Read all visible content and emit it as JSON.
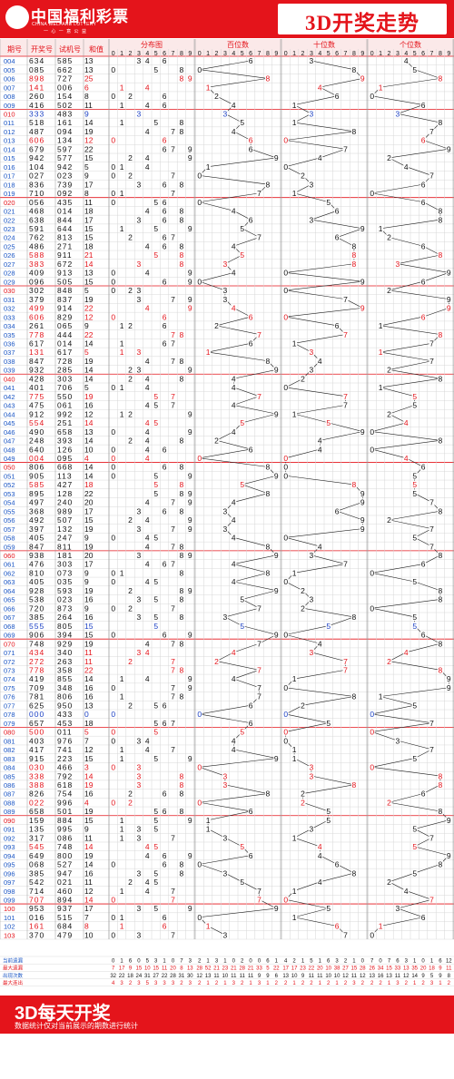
{
  "header": {
    "logo_text": "中国福利彩票",
    "logo_en": "CHINA WELFARE LOTTERY",
    "logo_slogan": "一 心 一 意 公 益",
    "title": "3D开奖走势"
  },
  "footer": {
    "title": "3D每天开奖",
    "note": "数据统计仅对当前展示的期数进行统计"
  },
  "columns": {
    "period": "期号",
    "draw": "开奖号",
    "trial": "试机号",
    "sum": "和值",
    "dist": "分布图",
    "hundreds": "百位数",
    "tens": "十位数",
    "units": "个位数"
  },
  "digits": [
    "0",
    "1",
    "2",
    "3",
    "4",
    "5",
    "6",
    "7",
    "8",
    "9"
  ],
  "stat_labels": [
    "当前遗漏",
    "最大遗漏",
    "出现次数",
    "最大连出"
  ],
  "colors": {
    "red": "#e4141b",
    "blue": "#1a3fc4",
    "black": "#111111",
    "header_bg": "#e4141b"
  },
  "chart_data": {
    "type": "table",
    "rows": [
      [
        "004",
        "634",
        "585",
        "13"
      ],
      [
        "005",
        "085",
        "662",
        "13"
      ],
      [
        "006",
        "898",
        "727",
        "25"
      ],
      [
        "007",
        "141",
        "006",
        "6"
      ],
      [
        "008",
        "260",
        "154",
        "8"
      ],
      [
        "009",
        "416",
        "502",
        "11"
      ],
      [
        "010",
        "333",
        "483",
        "9"
      ],
      [
        "011",
        "518",
        "161",
        "14"
      ],
      [
        "012",
        "487",
        "094",
        "19"
      ],
      [
        "013",
        "606",
        "134",
        "12"
      ],
      [
        "014",
        "679",
        "597",
        "22"
      ],
      [
        "015",
        "942",
        "577",
        "15"
      ],
      [
        "016",
        "104",
        "942",
        "5"
      ],
      [
        "017",
        "027",
        "023",
        "9"
      ],
      [
        "018",
        "836",
        "739",
        "17"
      ],
      [
        "019",
        "710",
        "092",
        "8"
      ],
      [
        "020",
        "056",
        "435",
        "11"
      ],
      [
        "021",
        "468",
        "014",
        "18"
      ],
      [
        "022",
        "638",
        "844",
        "17"
      ],
      [
        "023",
        "591",
        "644",
        "15"
      ],
      [
        "024",
        "762",
        "813",
        "15"
      ],
      [
        "025",
        "486",
        "271",
        "18"
      ],
      [
        "026",
        "588",
        "911",
        "21"
      ],
      [
        "027",
        "383",
        "672",
        "14"
      ],
      [
        "028",
        "409",
        "913",
        "13"
      ],
      [
        "029",
        "096",
        "505",
        "15"
      ],
      [
        "030",
        "302",
        "848",
        "5"
      ],
      [
        "031",
        "379",
        "837",
        "19"
      ],
      [
        "032",
        "499",
        "914",
        "22"
      ],
      [
        "033",
        "606",
        "829",
        "12"
      ],
      [
        "034",
        "261",
        "065",
        "9"
      ],
      [
        "035",
        "778",
        "444",
        "22"
      ],
      [
        "036",
        "617",
        "014",
        "14"
      ],
      [
        "037",
        "131",
        "617",
        "5"
      ],
      [
        "038",
        "847",
        "728",
        "19"
      ],
      [
        "039",
        "932",
        "285",
        "14"
      ],
      [
        "040",
        "428",
        "303",
        "14"
      ],
      [
        "041",
        "401",
        "706",
        "5"
      ],
      [
        "042",
        "775",
        "550",
        "19"
      ],
      [
        "043",
        "475",
        "061",
        "16"
      ],
      [
        "044",
        "912",
        "992",
        "12"
      ],
      [
        "045",
        "554",
        "251",
        "14"
      ],
      [
        "046",
        "490",
        "658",
        "13"
      ],
      [
        "047",
        "248",
        "393",
        "14"
      ],
      [
        "048",
        "640",
        "126",
        "10"
      ],
      [
        "049",
        "004",
        "095",
        "4"
      ],
      [
        "050",
        "806",
        "668",
        "14"
      ],
      [
        "051",
        "905",
        "113",
        "14"
      ],
      [
        "052",
        "585",
        "427",
        "18"
      ],
      [
        "053",
        "895",
        "128",
        "22"
      ],
      [
        "054",
        "497",
        "240",
        "20"
      ],
      [
        "055",
        "368",
        "989",
        "17"
      ],
      [
        "056",
        "492",
        "507",
        "15"
      ],
      [
        "057",
        "397",
        "132",
        "19"
      ],
      [
        "058",
        "405",
        "247",
        "9"
      ],
      [
        "059",
        "847",
        "811",
        "19"
      ],
      [
        "060",
        "938",
        "181",
        "20"
      ],
      [
        "061",
        "476",
        "303",
        "17"
      ],
      [
        "062",
        "810",
        "073",
        "9"
      ],
      [
        "063",
        "405",
        "035",
        "9"
      ],
      [
        "064",
        "928",
        "593",
        "19"
      ],
      [
        "065",
        "538",
        "023",
        "16"
      ],
      [
        "066",
        "720",
        "873",
        "9"
      ],
      [
        "067",
        "385",
        "264",
        "16"
      ],
      [
        "068",
        "555",
        "805",
        "15"
      ],
      [
        "069",
        "906",
        "394",
        "15"
      ],
      [
        "070",
        "748",
        "929",
        "19"
      ],
      [
        "071",
        "434",
        "340",
        "11"
      ],
      [
        "072",
        "272",
        "263",
        "11"
      ],
      [
        "073",
        "778",
        "358",
        "22"
      ],
      [
        "074",
        "419",
        "855",
        "14"
      ],
      [
        "075",
        "709",
        "348",
        "16"
      ],
      [
        "076",
        "781",
        "806",
        "16"
      ],
      [
        "077",
        "625",
        "950",
        "13"
      ],
      [
        "078",
        "000",
        "433",
        "0"
      ],
      [
        "079",
        "657",
        "453",
        "18"
      ],
      [
        "080",
        "500",
        "011",
        "5"
      ],
      [
        "081",
        "403",
        "976",
        "7"
      ],
      [
        "082",
        "417",
        "741",
        "12"
      ],
      [
        "083",
        "915",
        "223",
        "15"
      ],
      [
        "084",
        "030",
        "466",
        "3"
      ],
      [
        "085",
        "338",
        "792",
        "14"
      ],
      [
        "086",
        "388",
        "618",
        "19"
      ],
      [
        "087",
        "826",
        "754",
        "16"
      ],
      [
        "088",
        "022",
        "996",
        "4"
      ],
      [
        "089",
        "658",
        "501",
        "19"
      ],
      [
        "090",
        "159",
        "884",
        "15"
      ],
      [
        "091",
        "135",
        "995",
        "9"
      ],
      [
        "092",
        "317",
        "086",
        "11"
      ],
      [
        "093",
        "545",
        "748",
        "14"
      ],
      [
        "094",
        "649",
        "800",
        "19"
      ],
      [
        "095",
        "068",
        "527",
        "14"
      ],
      [
        "096",
        "385",
        "947",
        "16"
      ],
      [
        "097",
        "542",
        "021",
        "11"
      ],
      [
        "098",
        "714",
        "460",
        "12"
      ],
      [
        "099",
        "707",
        "894",
        "14"
      ],
      [
        "100",
        "953",
        "937",
        "17"
      ],
      [
        "101",
        "016",
        "515",
        "7"
      ],
      [
        "102",
        "161",
        "684",
        "8"
      ],
      [
        "103",
        "370",
        "479",
        "10"
      ]
    ],
    "stats": [
      [
        "0 1 6 0 5 3 1 0 7 3",
        "2 1 3 1 0 2 0 0 6 1",
        "4 2 1 5 1 6 3 2 1 0",
        "7 0 7 6 3 1 0 1 6 12"
      ],
      [
        "7 17 9 15 10 15 11 20 8 13",
        "28 52 21 23 21 28 21 33 5 22",
        "17 17 23 22 20 10 38 27 15 28",
        "26 34 15 33 13 35 20 18 9 11"
      ],
      [
        "32 22 18 24 31 27 22 28 31 30",
        "12 13 11 10 11 11 11 9 9 6",
        "13 10 9 11 11 10 10 12 11 12",
        "13 16 13 11 12 14 9 5 9 8"
      ],
      [
        "4 3 2 3 5 3 3 3 2 3",
        "2 1 2 1 3 2 1 3 1 2",
        "2 1 2 2 1 2 1 2 3 2",
        "2 2 1 3 2 1 2 3 1 2"
      ]
    ]
  }
}
